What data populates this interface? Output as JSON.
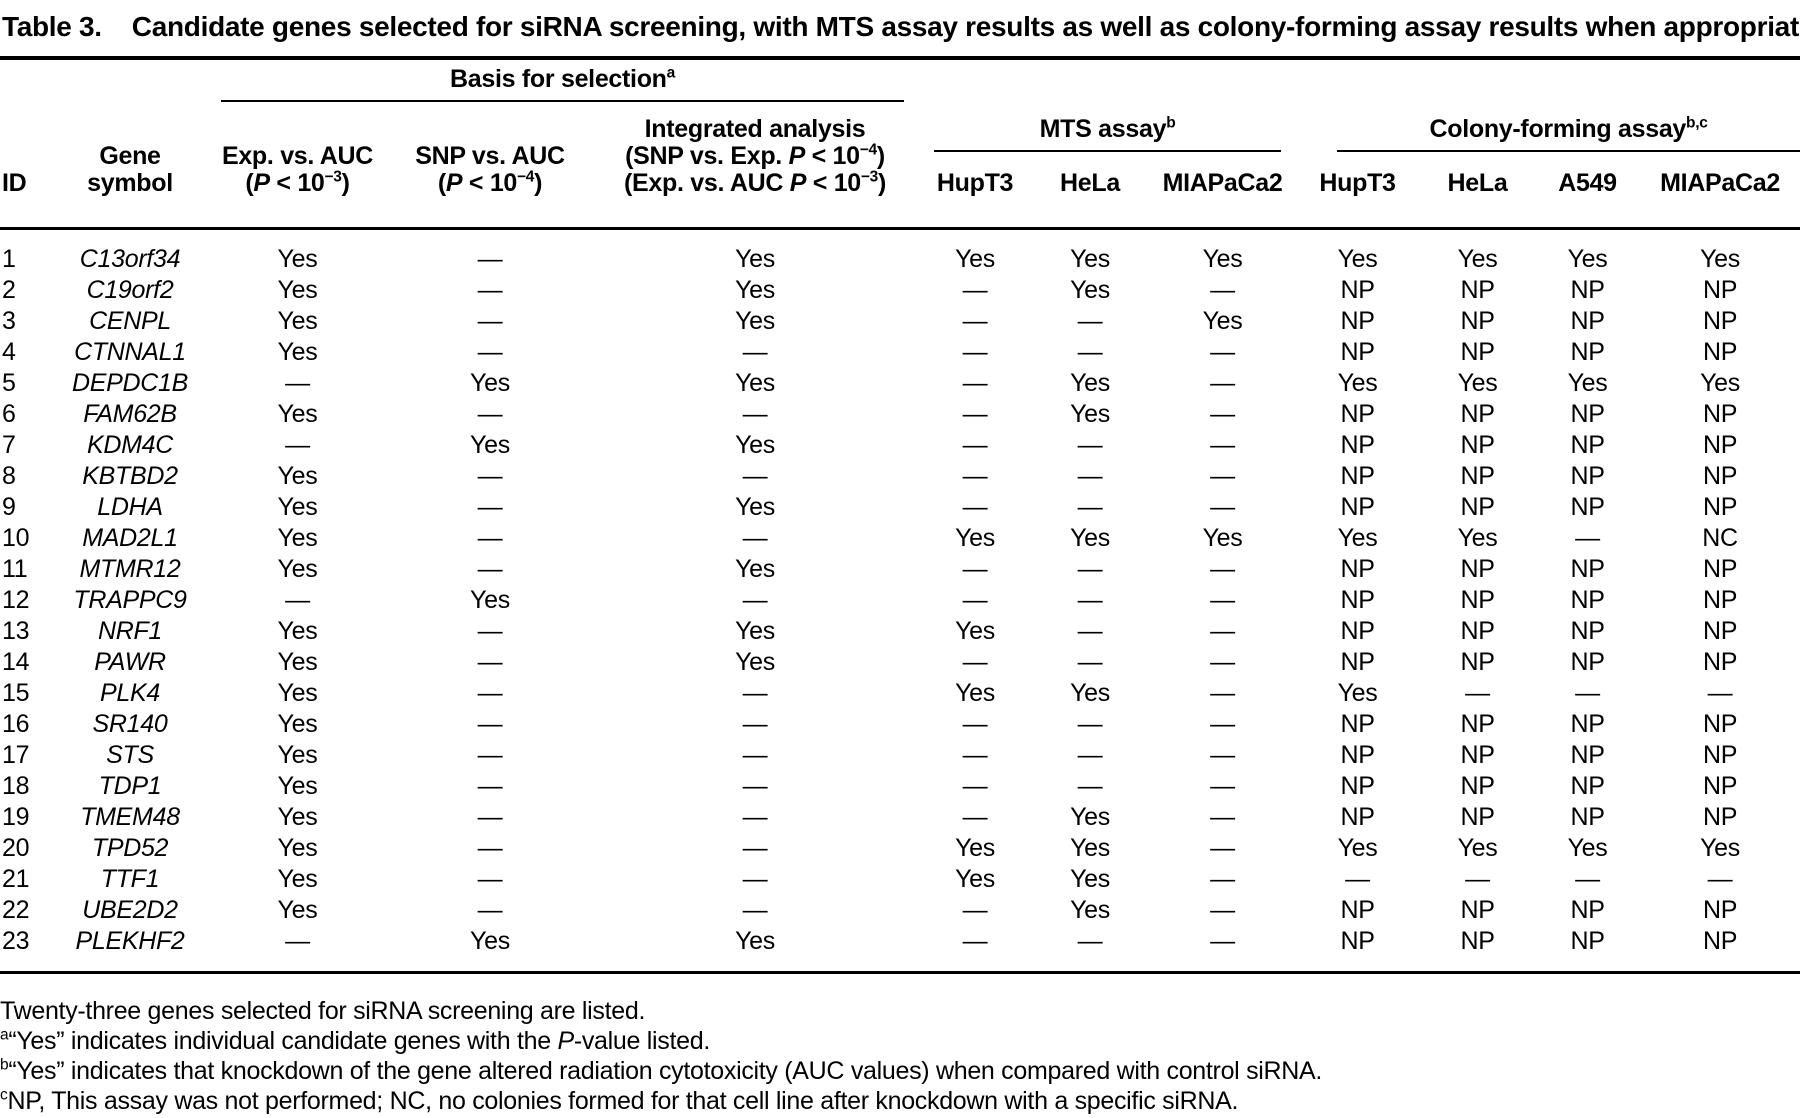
{
  "title": {
    "label": "Table 3.",
    "text": "Candidate genes selected for siRNA screening, with MTS assay results as well as colony-forming assay results when appropriate"
  },
  "table": {
    "groups": {
      "basis": "Basis for selection^a^",
      "mts": "MTS assay^b^",
      "colony": "Colony-forming assay^b,c^"
    },
    "headers": {
      "id": "ID",
      "gene": "Gene\nsymbol",
      "exp": "Exp. vs. AUC\n(*P* < 10^−3^)",
      "snp": "SNP vs. AUC\n(*P* < 10^−4^)",
      "integrated": "Integrated analysis\n(SNP vs. Exp. *P* < 10^−4^)\n(Exp. vs. AUC *P* < 10^−3^)",
      "mts_cell_lines": [
        "HupT3",
        "HeLa",
        "MIAPaCa2"
      ],
      "colony_cell_lines": [
        "HupT3",
        "HeLa",
        "A549",
        "MIAPaCa2"
      ]
    },
    "rows": [
      {
        "id": "1",
        "gene": "C13orf34",
        "values": [
          "Yes",
          "—",
          "Yes",
          "Yes",
          "Yes",
          "Yes",
          "Yes",
          "Yes",
          "Yes",
          "Yes"
        ]
      },
      {
        "id": "2",
        "gene": "C19orf2",
        "values": [
          "Yes",
          "—",
          "Yes",
          "—",
          "Yes",
          "—",
          "NP",
          "NP",
          "NP",
          "NP"
        ]
      },
      {
        "id": "3",
        "gene": "CENPL",
        "values": [
          "Yes",
          "—",
          "Yes",
          "—",
          "—",
          "Yes",
          "NP",
          "NP",
          "NP",
          "NP"
        ]
      },
      {
        "id": "4",
        "gene": "CTNNAL1",
        "values": [
          "Yes",
          "—",
          "—",
          "—",
          "—",
          "—",
          "NP",
          "NP",
          "NP",
          "NP"
        ]
      },
      {
        "id": "5",
        "gene": "DEPDC1B",
        "values": [
          "—",
          "Yes",
          "Yes",
          "—",
          "Yes",
          "—",
          "Yes",
          "Yes",
          "Yes",
          "Yes"
        ]
      },
      {
        "id": "6",
        "gene": "FAM62B",
        "values": [
          "Yes",
          "—",
          "—",
          "—",
          "Yes",
          "—",
          "NP",
          "NP",
          "NP",
          "NP"
        ]
      },
      {
        "id": "7",
        "gene": "KDM4C",
        "values": [
          "—",
          "Yes",
          "Yes",
          "—",
          "—",
          "—",
          "NP",
          "NP",
          "NP",
          "NP"
        ]
      },
      {
        "id": "8",
        "gene": "KBTBD2",
        "values": [
          "Yes",
          "—",
          "—",
          "—",
          "—",
          "—",
          "NP",
          "NP",
          "NP",
          "NP"
        ]
      },
      {
        "id": "9",
        "gene": "LDHA",
        "values": [
          "Yes",
          "—",
          "Yes",
          "—",
          "—",
          "—",
          "NP",
          "NP",
          "NP",
          "NP"
        ]
      },
      {
        "id": "10",
        "gene": "MAD2L1",
        "values": [
          "Yes",
          "—",
          "—",
          "Yes",
          "Yes",
          "Yes",
          "Yes",
          "Yes",
          "—",
          "NC"
        ]
      },
      {
        "id": "11",
        "gene": "MTMR12",
        "values": [
          "Yes",
          "—",
          "Yes",
          "—",
          "—",
          "—",
          "NP",
          "NP",
          "NP",
          "NP"
        ]
      },
      {
        "id": "12",
        "gene": "TRAPPC9",
        "values": [
          "—",
          "Yes",
          "—",
          "—",
          "—",
          "—",
          "NP",
          "NP",
          "NP",
          "NP"
        ]
      },
      {
        "id": "13",
        "gene": "NRF1",
        "values": [
          "Yes",
          "—",
          "Yes",
          "Yes",
          "—",
          "—",
          "NP",
          "NP",
          "NP",
          "NP"
        ]
      },
      {
        "id": "14",
        "gene": "PAWR",
        "values": [
          "Yes",
          "—",
          "Yes",
          "—",
          "—",
          "—",
          "NP",
          "NP",
          "NP",
          "NP"
        ]
      },
      {
        "id": "15",
        "gene": "PLK4",
        "values": [
          "Yes",
          "—",
          "—",
          "Yes",
          "Yes",
          "—",
          "Yes",
          "—",
          "—",
          "—"
        ]
      },
      {
        "id": "16",
        "gene": "SR140",
        "values": [
          "Yes",
          "—",
          "—",
          "—",
          "—",
          "—",
          "NP",
          "NP",
          "NP",
          "NP"
        ]
      },
      {
        "id": "17",
        "gene": "STS",
        "values": [
          "Yes",
          "—",
          "—",
          "—",
          "—",
          "—",
          "NP",
          "NP",
          "NP",
          "NP"
        ]
      },
      {
        "id": "18",
        "gene": "TDP1",
        "values": [
          "Yes",
          "—",
          "—",
          "—",
          "—",
          "—",
          "NP",
          "NP",
          "NP",
          "NP"
        ]
      },
      {
        "id": "19",
        "gene": "TMEM48",
        "values": [
          "Yes",
          "—",
          "—",
          "—",
          "Yes",
          "—",
          "NP",
          "NP",
          "NP",
          "NP"
        ]
      },
      {
        "id": "20",
        "gene": "TPD52",
        "values": [
          "Yes",
          "—",
          "—",
          "Yes",
          "Yes",
          "—",
          "Yes",
          "Yes",
          "Yes",
          "Yes"
        ]
      },
      {
        "id": "21",
        "gene": "TTF1",
        "values": [
          "Yes",
          "—",
          "—",
          "Yes",
          "Yes",
          "—",
          "—",
          "—",
          "—",
          "—"
        ]
      },
      {
        "id": "22",
        "gene": "UBE2D2",
        "values": [
          "Yes",
          "—",
          "—",
          "—",
          "Yes",
          "—",
          "NP",
          "NP",
          "NP",
          "NP"
        ]
      },
      {
        "id": "23",
        "gene": "PLEKHF2",
        "values": [
          "—",
          "Yes",
          "Yes",
          "—",
          "—",
          "—",
          "NP",
          "NP",
          "NP",
          "NP"
        ]
      }
    ]
  },
  "footnotes": [
    {
      "sup": "",
      "text": "Twenty-three genes selected for siRNA screening are listed."
    },
    {
      "sup": "a",
      "text": "“Yes” indicates individual candidate genes with the *P*-value listed."
    },
    {
      "sup": "b",
      "text": "“Yes” indicates that knockdown of the gene altered radiation cytotoxicity (AUC values) when compared with control siRNA."
    },
    {
      "sup": "c",
      "text": "NP, This assay was not performed; NC, no colonies formed for that cell line after knockdown with a specific siRNA."
    }
  ]
}
